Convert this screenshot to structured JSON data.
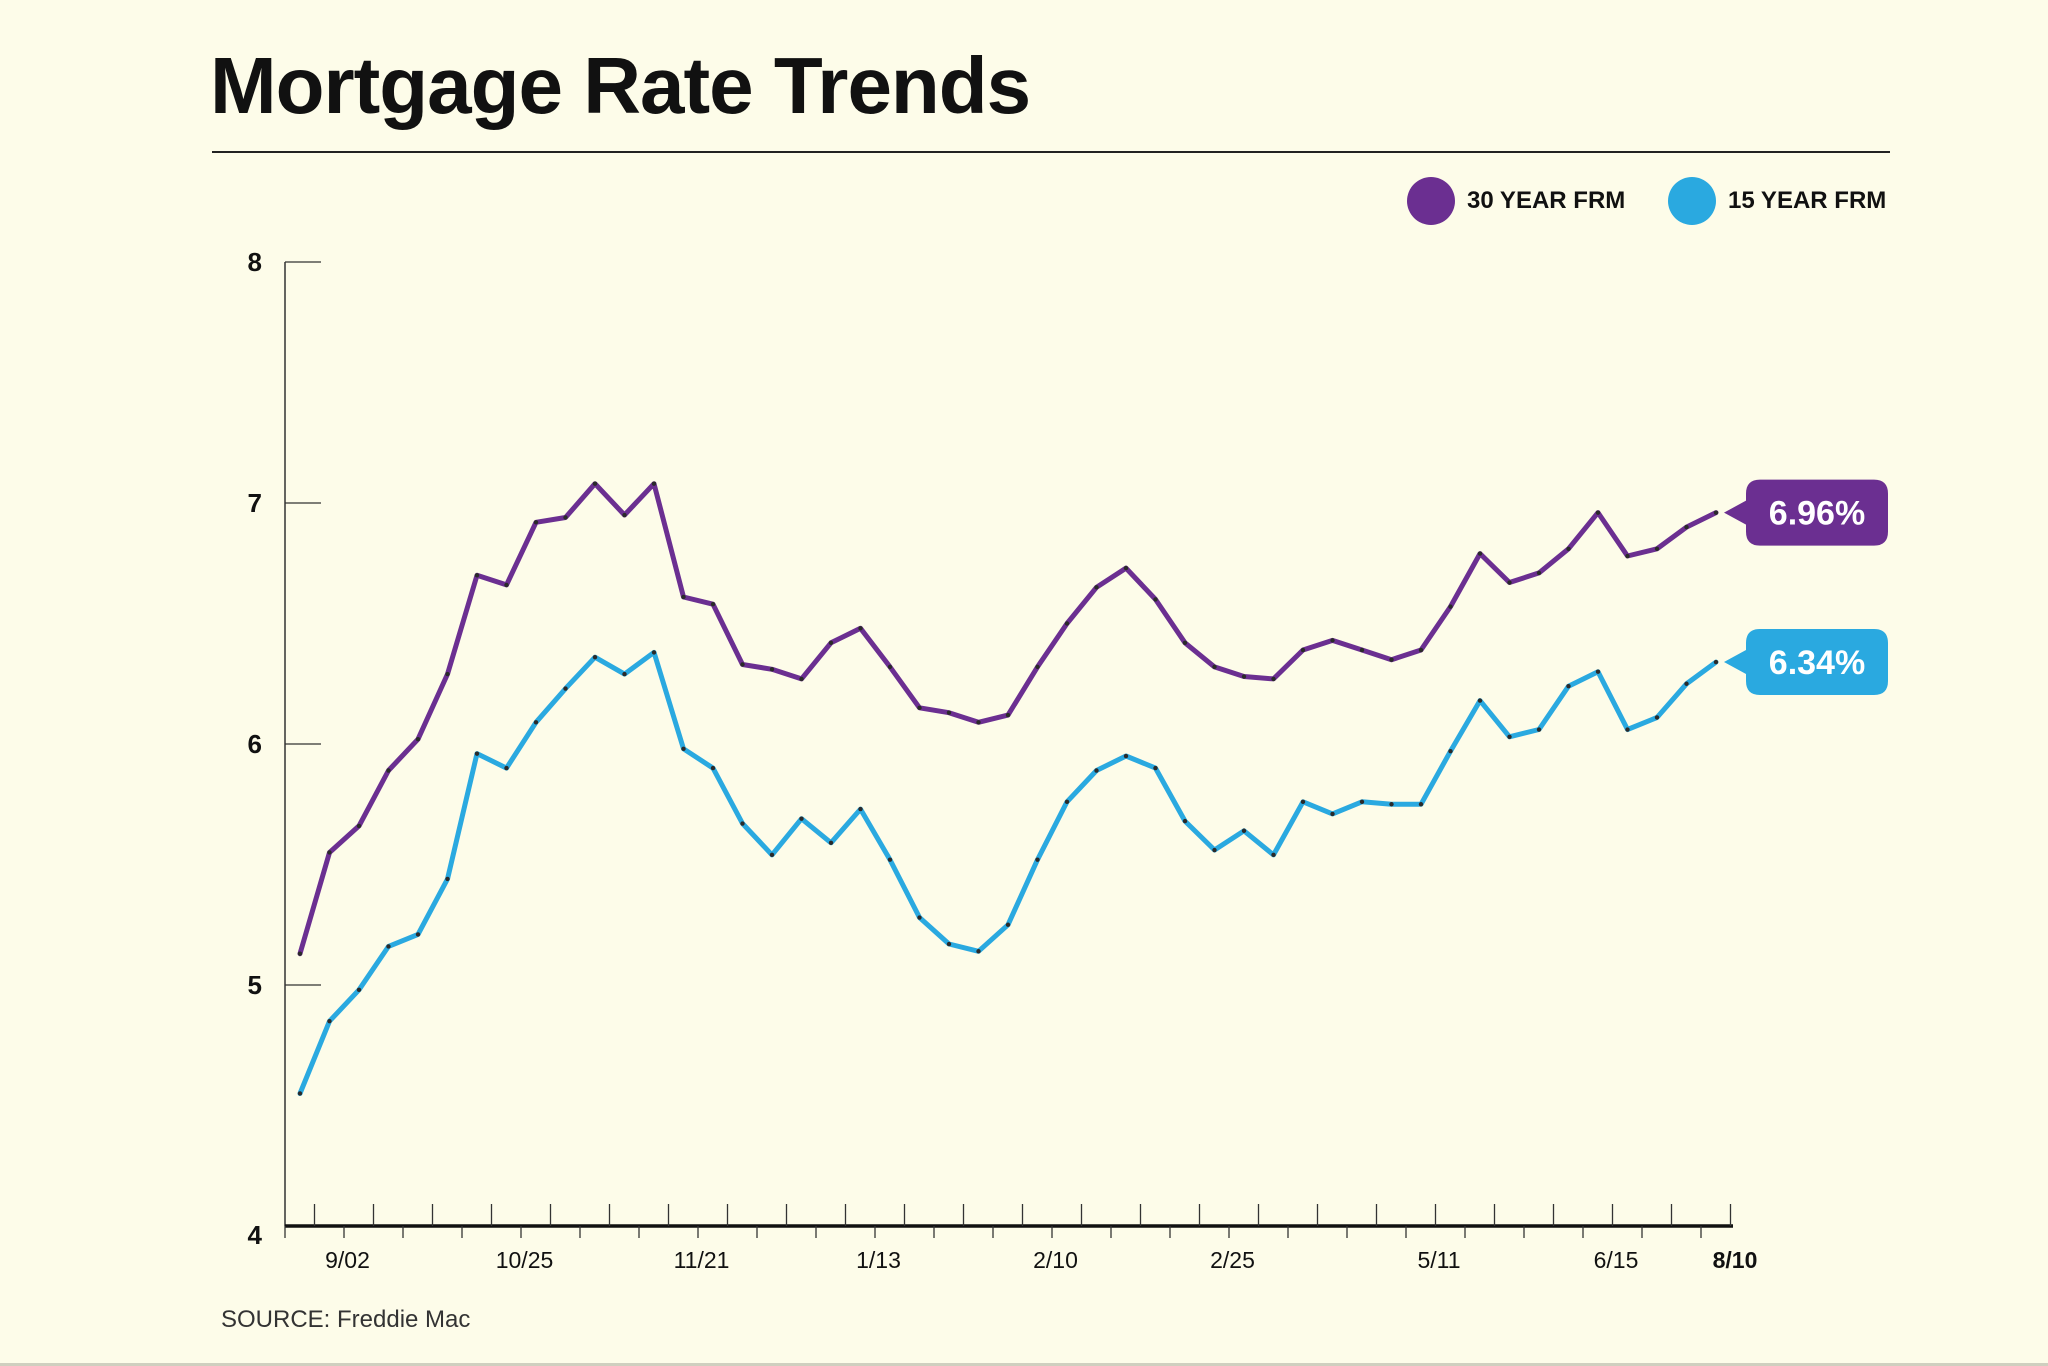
{
  "header": {
    "title": "Mortgage Rate Trends"
  },
  "legend": [
    {
      "label": "30 YEAR FRM",
      "color": "#6b2f91"
    },
    {
      "label": "15 YEAR FRM",
      "color": "#2aa9e0"
    }
  ],
  "source": "SOURCE: Freddie Mac",
  "chart_data": {
    "type": "line",
    "title": "Mortgage Rate Trends",
    "xlabel": "",
    "ylabel": "",
    "ylim": [
      4,
      8
    ],
    "yticks": [
      "4",
      "5",
      "6",
      "7",
      "8"
    ],
    "xtick_labels": [
      {
        "label": "9/02",
        "index": 1
      },
      {
        "label": "10/25",
        "index": 7
      },
      {
        "label": "11/21",
        "index": 13
      },
      {
        "label": "1/13",
        "index": 19
      },
      {
        "label": "2/10",
        "index": 25
      },
      {
        "label": "2/25",
        "index": 31
      },
      {
        "label": "5/11",
        "index": 38
      },
      {
        "label": "6/15",
        "index": 44
      },
      {
        "label": "8/10",
        "index": 49
      }
    ],
    "grid": false,
    "legend_position": "top-right",
    "series": [
      {
        "name": "30 YEAR FRM",
        "color": "#6b2f91",
        "end_label": "6.96%",
        "values": [
          5.13,
          5.55,
          5.66,
          5.89,
          6.02,
          6.29,
          6.7,
          6.66,
          6.92,
          6.94,
          7.08,
          6.95,
          7.08,
          6.61,
          6.58,
          6.33,
          6.31,
          6.27,
          6.42,
          6.48,
          6.32,
          6.15,
          6.13,
          6.09,
          6.12,
          6.32,
          6.5,
          6.65,
          6.73,
          6.6,
          6.42,
          6.32,
          6.28,
          6.27,
          6.39,
          6.43,
          6.39,
          6.35,
          6.39,
          6.57,
          6.79,
          6.67,
          6.71,
          6.81,
          6.96,
          6.78,
          6.81,
          6.9,
          6.96
        ]
      },
      {
        "name": "15 YEAR FRM",
        "color": "#2aa9e0",
        "end_label": "6.34%",
        "values": [
          4.55,
          4.85,
          4.98,
          5.16,
          5.21,
          5.44,
          5.96,
          5.9,
          6.09,
          6.23,
          6.36,
          6.29,
          6.38,
          5.98,
          5.9,
          5.67,
          5.54,
          5.69,
          5.59,
          5.73,
          5.52,
          5.28,
          5.17,
          5.14,
          5.25,
          5.52,
          5.76,
          5.89,
          5.95,
          5.9,
          5.68,
          5.56,
          5.64,
          5.54,
          5.76,
          5.71,
          5.76,
          5.75,
          5.75,
          5.97,
          6.18,
          6.03,
          6.06,
          6.24,
          6.3,
          6.06,
          6.11,
          6.25,
          6.34
        ]
      }
    ]
  }
}
